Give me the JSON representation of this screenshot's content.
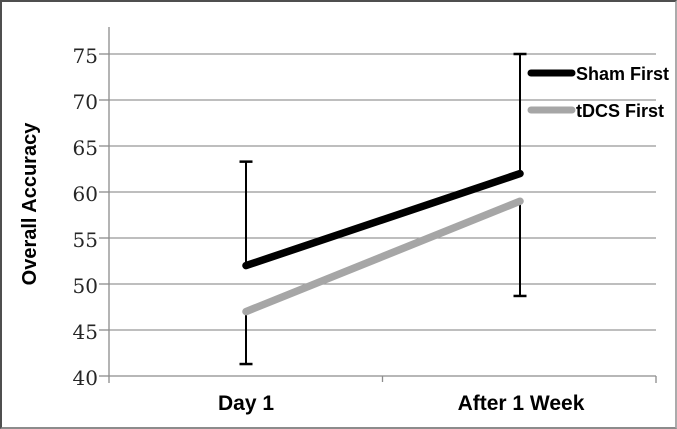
{
  "chart_data": {
    "type": "line",
    "title": "",
    "categories": [
      "Day 1",
      "After 1 Week"
    ],
    "series": [
      {
        "name": "Sham First",
        "color": "#000000",
        "values": [
          52,
          62
        ],
        "error_bar_direction": "plus",
        "error_bar_ends": [
          63.3,
          75.0
        ]
      },
      {
        "name": "tDCS First",
        "color": "#a6a6a6",
        "values": [
          47,
          59
        ],
        "error_bar_direction": "minus",
        "error_bar_ends": [
          41.3,
          48.7
        ]
      }
    ],
    "xlabel": "",
    "ylabel": "Overall Accuracy",
    "ylim": [
      40,
      78
    ],
    "yticks": [
      75,
      70,
      65,
      60,
      55,
      50,
      45,
      40
    ],
    "grid": true,
    "legend": {
      "position": "inside-top-right",
      "entries": [
        "Sham First",
        "tDCS First"
      ]
    }
  },
  "colors": {
    "background": "#ffffff",
    "gridline": "#969696",
    "axis": "#8c8c8c",
    "error_bar": "#000000",
    "tick_label": "#262626",
    "text": "#000000"
  }
}
